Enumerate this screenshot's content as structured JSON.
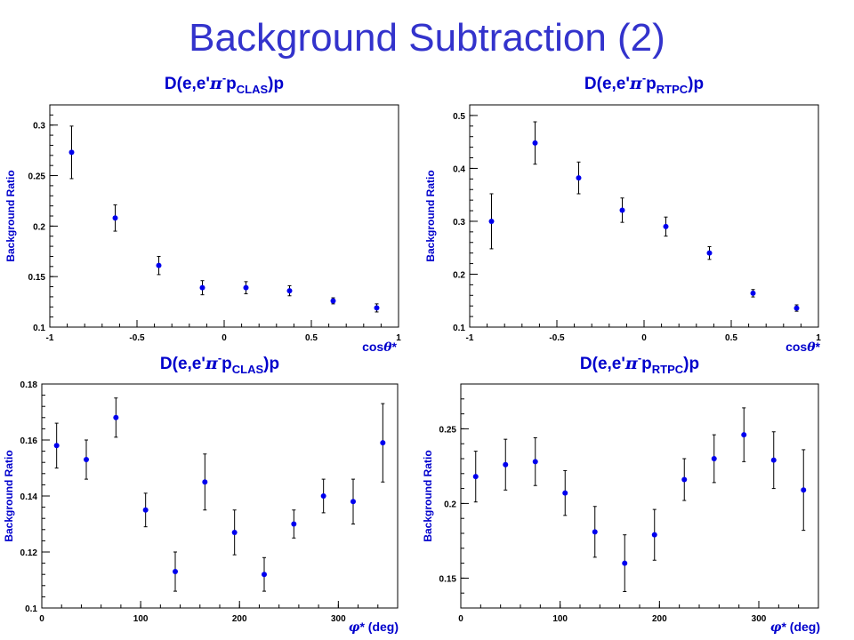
{
  "slide": {
    "title": "Background Subtraction (2)"
  },
  "colors": {
    "title": "#3333cc",
    "marker": "#0000ee",
    "label": "#0000cc",
    "axis": "#000000"
  },
  "chart_data": [
    {
      "type": "scatter",
      "title": {
        "main": "D(e,e'",
        "greek": "π",
        "sup": "-",
        "p": "p",
        "sub": "CLAS",
        "tail": ")p"
      },
      "xlabel": {
        "prefix": "cos",
        "greek": "θ",
        "suffix": "*"
      },
      "ylabel": "Background Ratio",
      "xlim": [
        -1,
        1
      ],
      "ylim": [
        0.1,
        0.32
      ],
      "xticks": [
        -1,
        -0.5,
        0,
        0.5,
        1
      ],
      "xtick_labels": [
        "-1",
        "-0.5",
        "0",
        "0.5",
        "1"
      ],
      "yticks": [
        0.1,
        0.15,
        0.2,
        0.25,
        0.3
      ],
      "ytick_labels": [
        "0.1",
        "0.15",
        "0.2",
        "0.25",
        "0.3"
      ],
      "x": [
        -0.875,
        -0.625,
        -0.375,
        -0.125,
        0.125,
        0.375,
        0.625,
        0.875
      ],
      "y": [
        0.273,
        0.208,
        0.161,
        0.139,
        0.139,
        0.136,
        0.126,
        0.119
      ],
      "yerr": [
        0.026,
        0.013,
        0.009,
        0.007,
        0.006,
        0.005,
        0.003,
        0.004
      ]
    },
    {
      "type": "scatter",
      "title": {
        "main": "D(e,e'",
        "greek": "π",
        "sup": "-",
        "p": "p",
        "sub": "RTPC",
        "tail": ")p"
      },
      "xlabel": {
        "prefix": "cos",
        "greek": "θ",
        "suffix": "*"
      },
      "ylabel": "Background Ratio",
      "xlim": [
        -1,
        1
      ],
      "ylim": [
        0.1,
        0.52
      ],
      "xticks": [
        -1,
        -0.5,
        0,
        0.5,
        1
      ],
      "xtick_labels": [
        "-1",
        "-0.5",
        "0",
        "0.5",
        "1"
      ],
      "yticks": [
        0.1,
        0.2,
        0.3,
        0.4,
        0.5
      ],
      "ytick_labels": [
        "0.1",
        "0.2",
        "0.3",
        "0.4",
        "0.5"
      ],
      "x": [
        -0.875,
        -0.625,
        -0.375,
        -0.125,
        0.125,
        0.375,
        0.625,
        0.875
      ],
      "y": [
        0.3,
        0.448,
        0.382,
        0.321,
        0.29,
        0.24,
        0.164,
        0.136
      ],
      "yerr": [
        0.052,
        0.04,
        0.03,
        0.023,
        0.018,
        0.012,
        0.007,
        0.006
      ]
    },
    {
      "type": "scatter",
      "title": {
        "main": "D(e,e'",
        "greek": "π",
        "sup": "-",
        "p": "p",
        "sub": "CLAS",
        "tail": ")p"
      },
      "xlabel": {
        "prefix": "",
        "greek": "φ",
        "suffix": "* (deg)"
      },
      "ylabel": "Background Ratio",
      "xlim": [
        0,
        360
      ],
      "ylim": [
        0.1,
        0.18
      ],
      "xticks": [
        0,
        100,
        200,
        300
      ],
      "xtick_labels": [
        "0",
        "100",
        "200",
        "300"
      ],
      "yticks": [
        0.1,
        0.12,
        0.14,
        0.16,
        0.18
      ],
      "ytick_labels": [
        "0.1",
        "0.12",
        "0.14",
        "0.16",
        "0.18"
      ],
      "x": [
        15,
        45,
        75,
        105,
        135,
        165,
        195,
        225,
        255,
        285,
        315,
        345
      ],
      "y": [
        0.158,
        0.153,
        0.168,
        0.135,
        0.113,
        0.145,
        0.127,
        0.112,
        0.13,
        0.14,
        0.138,
        0.159
      ],
      "yerr": [
        0.008,
        0.007,
        0.007,
        0.006,
        0.007,
        0.01,
        0.008,
        0.006,
        0.005,
        0.006,
        0.008,
        0.014
      ]
    },
    {
      "type": "scatter",
      "title": {
        "main": "D(e,e'",
        "greek": "π",
        "sup": "-",
        "p": "p",
        "sub": "RTPC",
        "tail": ")p"
      },
      "xlabel": {
        "prefix": "",
        "greek": "φ",
        "suffix": "* (deg)"
      },
      "ylabel": "Background Ratio",
      "xlim": [
        0,
        360
      ],
      "ylim": [
        0.13,
        0.28
      ],
      "xticks": [
        0,
        100,
        200,
        300
      ],
      "xtick_labels": [
        "0",
        "100",
        "200",
        "300"
      ],
      "yticks": [
        0.15,
        0.2,
        0.25
      ],
      "ytick_labels": [
        "0.15",
        "0.2",
        "0.25"
      ],
      "x": [
        15,
        45,
        75,
        105,
        135,
        165,
        195,
        225,
        255,
        285,
        315,
        345
      ],
      "y": [
        0.218,
        0.226,
        0.228,
        0.207,
        0.181,
        0.16,
        0.179,
        0.216,
        0.23,
        0.246,
        0.229,
        0.209
      ],
      "yerr": [
        0.017,
        0.017,
        0.016,
        0.015,
        0.017,
        0.019,
        0.017,
        0.014,
        0.016,
        0.018,
        0.019,
        0.027
      ]
    }
  ]
}
